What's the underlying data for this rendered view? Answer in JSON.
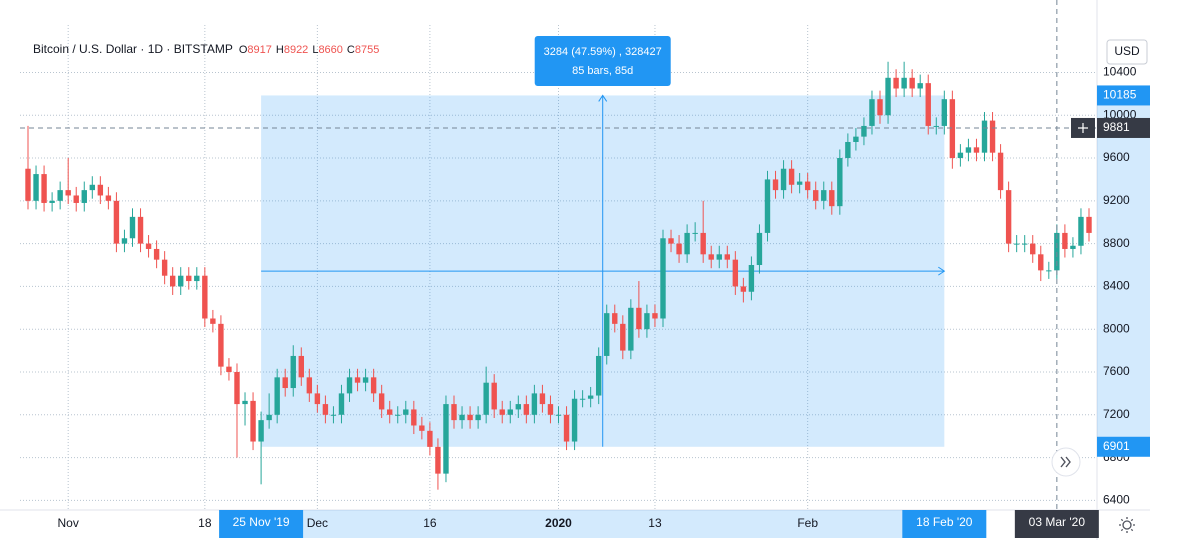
{
  "chart_data": {
    "type": "candlestick",
    "title": "Bitcoin / U.S. Dollar · 1D · BITSTAMP",
    "ohlc_legend": [
      {
        "label": "O",
        "value": 8917
      },
      {
        "label": "H",
        "value": 8922
      },
      {
        "label": "L",
        "value": 8660
      },
      {
        "label": "C",
        "value": 8755
      }
    ],
    "currency": "USD",
    "up_color": "#26a69a",
    "down_color": "#ef5350",
    "series": [
      {
        "ohlc": [
          [
            9500,
            9900,
            9120,
            9200
          ],
          [
            9200,
            9530,
            9120,
            9450
          ],
          [
            9450,
            9530,
            9100,
            9180
          ],
          [
            9180,
            9280,
            9100,
            9200
          ],
          [
            9200,
            9380,
            9120,
            9300
          ],
          [
            9300,
            9600,
            9170,
            9250
          ],
          [
            9250,
            9330,
            9100,
            9180
          ],
          [
            9180,
            9380,
            9100,
            9300
          ],
          [
            9300,
            9430,
            9220,
            9350
          ],
          [
            9350,
            9430,
            9170,
            9250
          ],
          [
            9250,
            9330,
            9120,
            9200
          ],
          [
            9200,
            9280,
            8720,
            8800
          ],
          [
            8800,
            8930,
            8720,
            8850
          ],
          [
            8850,
            9130,
            8770,
            9050
          ],
          [
            9050,
            9130,
            8720,
            8800
          ],
          [
            8800,
            8880,
            8670,
            8750
          ],
          [
            8750,
            8830,
            8570,
            8650
          ],
          [
            8650,
            8730,
            8420,
            8500
          ],
          [
            8500,
            8580,
            8320,
            8400
          ],
          [
            8400,
            8580,
            8320,
            8500
          ],
          [
            8500,
            8580,
            8370,
            8450
          ],
          [
            8450,
            8580,
            8370,
            8500
          ],
          [
            8500,
            8580,
            8020,
            8100
          ],
          [
            8100,
            8180,
            7970,
            8050
          ],
          [
            8050,
            8130,
            7570,
            7650
          ],
          [
            7650,
            7730,
            7520,
            7600
          ],
          [
            7600,
            7680,
            6800,
            7300
          ],
          [
            7300,
            7410,
            7100,
            7330
          ],
          [
            7330,
            7410,
            6870,
            6950
          ],
          [
            6950,
            7230,
            6550,
            7150
          ],
          [
            7150,
            7400,
            7070,
            7200
          ],
          [
            7200,
            7630,
            7120,
            7550
          ],
          [
            7550,
            7630,
            7370,
            7450
          ],
          [
            7450,
            7850,
            7370,
            7750
          ],
          [
            7750,
            7830,
            7470,
            7550
          ],
          [
            7550,
            7630,
            7320,
            7400
          ],
          [
            7400,
            7480,
            7220,
            7300
          ],
          [
            7300,
            7380,
            7120,
            7200
          ],
          [
            7200,
            7280,
            7120,
            7200
          ],
          [
            7200,
            7480,
            7120,
            7400
          ],
          [
            7400,
            7630,
            7320,
            7550
          ],
          [
            7550,
            7630,
            7420,
            7500
          ],
          [
            7500,
            7630,
            7420,
            7550
          ],
          [
            7550,
            7630,
            7320,
            7400
          ],
          [
            7400,
            7480,
            7170,
            7250
          ],
          [
            7250,
            7330,
            7120,
            7200
          ],
          [
            7200,
            7280,
            7120,
            7200
          ],
          [
            7200,
            7330,
            7120,
            7250
          ],
          [
            7250,
            7330,
            7020,
            7100
          ],
          [
            7100,
            7180,
            6970,
            7050
          ],
          [
            7050,
            7130,
            6820,
            6900
          ],
          [
            6900,
            6980,
            6500,
            6650
          ],
          [
            6650,
            7380,
            6570,
            7300
          ],
          [
            7300,
            7380,
            7070,
            7150
          ],
          [
            7150,
            7280,
            7070,
            7200
          ],
          [
            7200,
            7280,
            7070,
            7150
          ],
          [
            7150,
            7280,
            7070,
            7200
          ],
          [
            7200,
            7650,
            7120,
            7500
          ],
          [
            7500,
            7580,
            7170,
            7250
          ],
          [
            7250,
            7330,
            7120,
            7200
          ],
          [
            7200,
            7330,
            7120,
            7250
          ],
          [
            7250,
            7380,
            7170,
            7300
          ],
          [
            7300,
            7380,
            7120,
            7200
          ],
          [
            7200,
            7480,
            7120,
            7400
          ],
          [
            7400,
            7480,
            7220,
            7300
          ],
          [
            7300,
            7380,
            7120,
            7200
          ],
          [
            7200,
            7280,
            7120,
            7200
          ],
          [
            7200,
            7280,
            6870,
            6950
          ],
          [
            6950,
            7430,
            6870,
            7350
          ],
          [
            7350,
            7430,
            7270,
            7350
          ],
          [
            7350,
            7460,
            7270,
            7380
          ],
          [
            7380,
            7830,
            7300,
            7750
          ],
          [
            7750,
            8230,
            7670,
            8150
          ],
          [
            8150,
            8230,
            7970,
            8050
          ],
          [
            8050,
            8130,
            7720,
            7800
          ],
          [
            7800,
            8280,
            7720,
            8200
          ],
          [
            8200,
            8450,
            7920,
            8000
          ],
          [
            8000,
            8230,
            7920,
            8150
          ],
          [
            8150,
            8230,
            8020,
            8100
          ],
          [
            8100,
            8930,
            8020,
            8850
          ],
          [
            8850,
            8930,
            8720,
            8800
          ],
          [
            8800,
            8880,
            8620,
            8700
          ],
          [
            8700,
            8980,
            8620,
            8900
          ],
          [
            8900,
            9000,
            8820,
            8900
          ],
          [
            8900,
            9200,
            8620,
            8700
          ],
          [
            8700,
            8780,
            8570,
            8650
          ],
          [
            8650,
            8780,
            8570,
            8700
          ],
          [
            8700,
            8780,
            8570,
            8650
          ],
          [
            8650,
            8730,
            8320,
            8400
          ],
          [
            8400,
            8480,
            8250,
            8350
          ],
          [
            8350,
            8680,
            8270,
            8600
          ],
          [
            8600,
            8980,
            8520,
            8900
          ],
          [
            8900,
            9480,
            8820,
            9400
          ],
          [
            9400,
            9480,
            9220,
            9300
          ],
          [
            9300,
            9580,
            9220,
            9500
          ],
          [
            9500,
            9580,
            9270,
            9350
          ],
          [
            9350,
            9460,
            9270,
            9380
          ],
          [
            9380,
            9460,
            9220,
            9300
          ],
          [
            9300,
            9380,
            9120,
            9200
          ],
          [
            9200,
            9380,
            9120,
            9300
          ],
          [
            9300,
            9380,
            9070,
            9150
          ],
          [
            9150,
            9680,
            9070,
            9600
          ],
          [
            9600,
            9830,
            9520,
            9750
          ],
          [
            9750,
            9880,
            9670,
            9800
          ],
          [
            9800,
            9980,
            9720,
            9900
          ],
          [
            9900,
            10230,
            9820,
            10150
          ],
          [
            10150,
            10230,
            9920,
            10000
          ],
          [
            10000,
            10500,
            9920,
            10350
          ],
          [
            10350,
            10430,
            10170,
            10250
          ],
          [
            10250,
            10500,
            10170,
            10350
          ],
          [
            10350,
            10430,
            10170,
            10250
          ],
          [
            10250,
            10380,
            10170,
            10300
          ],
          [
            10300,
            10380,
            9820,
            9900
          ],
          [
            9900,
            9980,
            9820,
            9900
          ],
          [
            9900,
            10230,
            9820,
            10150
          ],
          [
            10150,
            10230,
            9500,
            9600
          ],
          [
            9600,
            9730,
            9520,
            9650
          ],
          [
            9650,
            9780,
            9570,
            9700
          ],
          [
            9700,
            9780,
            9570,
            9650
          ],
          [
            9650,
            10030,
            9570,
            9950
          ],
          [
            9950,
            10030,
            9570,
            9650
          ],
          [
            9650,
            9730,
            9220,
            9300
          ],
          [
            9300,
            9380,
            8720,
            8800
          ],
          [
            8800,
            8880,
            8720,
            8800
          ],
          [
            8800,
            8880,
            8720,
            8800
          ],
          [
            8800,
            8880,
            8620,
            8700
          ],
          [
            8700,
            8780,
            8450,
            8550
          ],
          [
            8550,
            8630,
            8470,
            8550
          ],
          [
            8550,
            8980,
            8470,
            8900
          ],
          [
            8900,
            8980,
            8670,
            8750
          ],
          [
            8750,
            8860,
            8670,
            8780
          ],
          [
            8780,
            9130,
            8700,
            9050
          ],
          [
            9050,
            9130,
            8820,
            8900
          ]
        ]
      }
    ],
    "xlim": [
      0,
      132
    ],
    "xticks": [
      {
        "value": 5,
        "label": "Nov"
      },
      {
        "value": 22,
        "label": "18"
      },
      {
        "value": 36,
        "label": "Dec"
      },
      {
        "value": 50,
        "label": "16"
      },
      {
        "value": 66,
        "label": "2020"
      },
      {
        "value": 78,
        "label": "13"
      },
      {
        "value": 97,
        "label": "Feb"
      }
    ],
    "ylim": [
      6310,
      10750
    ],
    "yticks": [
      6400,
      6800,
      7200,
      7600,
      8000,
      8400,
      8800,
      9200,
      9600,
      10000,
      10400
    ],
    "grid": true,
    "measure": {
      "x": [
        29,
        114
      ],
      "prices": [
        10185,
        6901
      ],
      "date_labels": [
        "25 Nov '19",
        "18 Feb '20"
      ],
      "change_label": "3284 (47.59%) , 328427",
      "bars_label": "85 bars, 85d"
    },
    "crosshair": {
      "price": 9881,
      "x": 128,
      "date_label": "03 Mar '20"
    }
  }
}
